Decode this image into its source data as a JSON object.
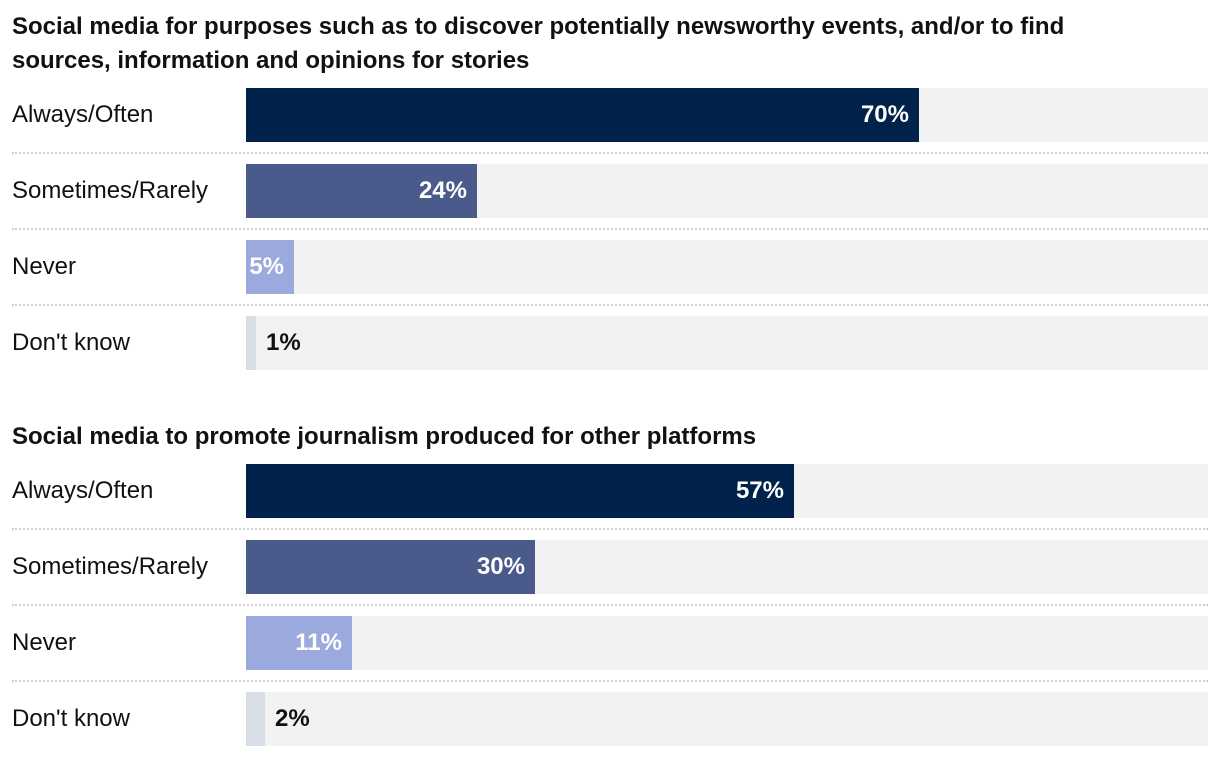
{
  "colors": {
    "always_often": "#00224b",
    "sometimes_rarely": "#4a5a8a",
    "never": "#9ba9dd",
    "dont_know": "#d8dde6",
    "track": "#f2f2f2"
  },
  "chart_data": [
    {
      "type": "bar",
      "orientation": "horizontal",
      "title": "Social media for purposes such as to discover potentially newsworthy events, and/or to find sources, information and opinions for stories",
      "categories": [
        "Always/Often",
        "Sometimes/Rarely",
        "Never",
        "Don't know"
      ],
      "values": [
        70,
        24,
        5,
        1
      ],
      "value_labels": [
        "70%",
        "24%",
        "5%",
        "1%"
      ],
      "xlim": [
        0,
        100
      ],
      "xlabel": "",
      "ylabel": ""
    },
    {
      "type": "bar",
      "orientation": "horizontal",
      "title": "Social media to promote journalism produced for other platforms",
      "categories": [
        "Always/Often",
        "Sometimes/Rarely",
        "Never",
        "Don't know"
      ],
      "values": [
        57,
        30,
        11,
        2
      ],
      "value_labels": [
        "57%",
        "30%",
        "11%",
        "2%"
      ],
      "xlim": [
        0,
        100
      ],
      "xlabel": "",
      "ylabel": ""
    }
  ]
}
